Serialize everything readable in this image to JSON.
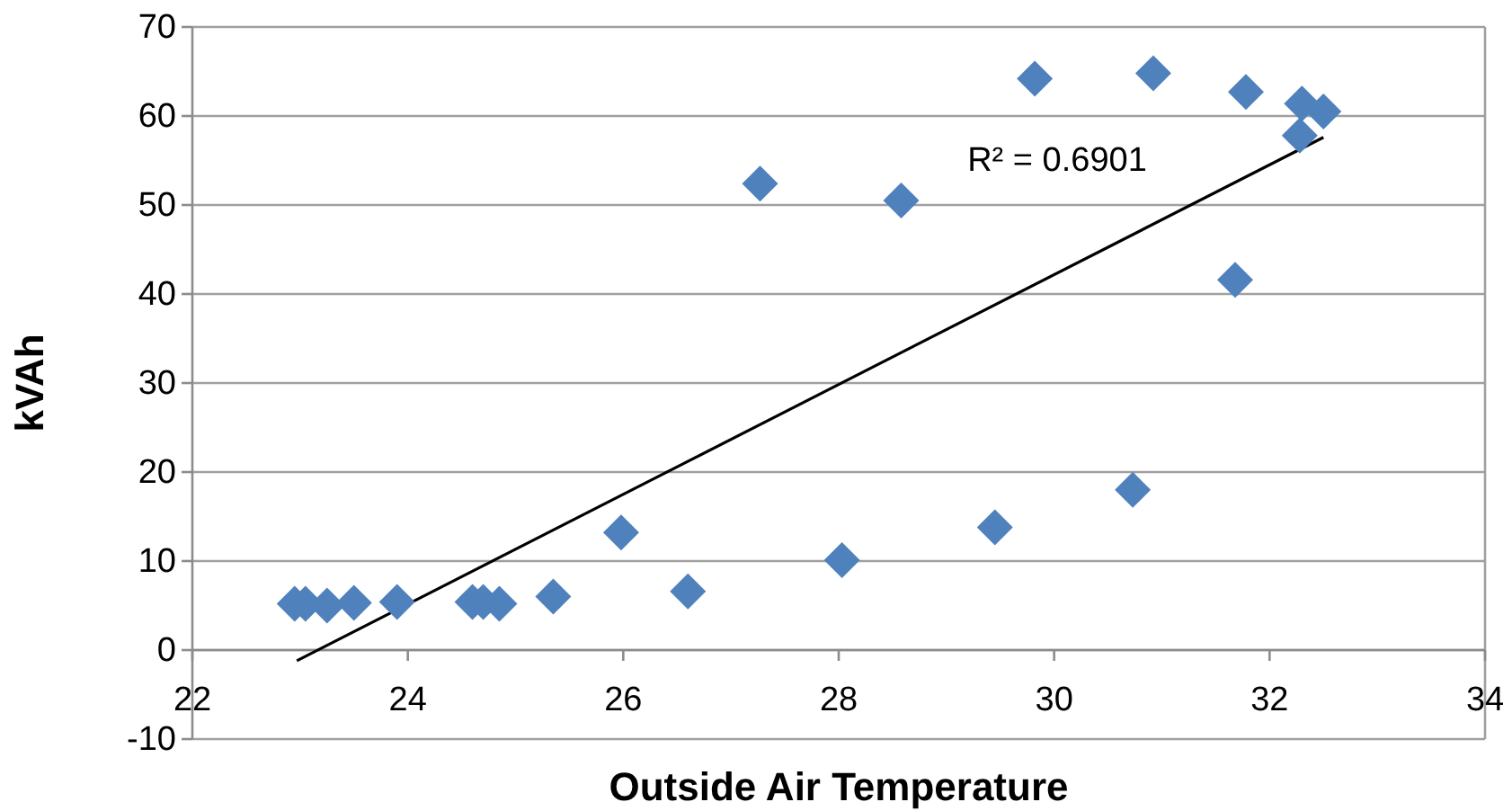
{
  "chart_data": {
    "type": "scatter",
    "xlabel": "Outside Air Temperature",
    "ylabel": "kVAh",
    "xlim": [
      22,
      34
    ],
    "xticks": [
      22,
      24,
      26,
      28,
      30,
      32,
      34
    ],
    "ylim": [
      -10,
      70
    ],
    "yticks": [
      -10,
      0,
      10,
      20,
      30,
      40,
      50,
      60,
      70
    ],
    "grid": "y",
    "annotations": [
      "R² = 0.6901"
    ],
    "series": [
      {
        "marker": "diamond",
        "color": "#4f81bd",
        "x": [
          22.95,
          23.05,
          23.25,
          23.5,
          23.9,
          24.6,
          24.7,
          24.85,
          25.35,
          25.98,
          26.6,
          27.27,
          28.03,
          28.58,
          29.45,
          29.82,
          30.92,
          30.73,
          31.68,
          31.78,
          32.3,
          32.28,
          32.5
        ],
        "values": [
          5.2,
          5.2,
          5.0,
          5.3,
          5.4,
          5.4,
          5.4,
          5.2,
          6.0,
          13.2,
          6.6,
          52.4,
          10.1,
          50.5,
          13.8,
          64.2,
          64.8,
          18.0,
          41.6,
          62.7,
          61.4,
          57.8,
          60.5
        ]
      },
      {
        "type": "line",
        "color": "#000000",
        "x": [
          22.97,
          32.5
        ],
        "values": [
          -1.2,
          57.6
        ]
      }
    ]
  }
}
